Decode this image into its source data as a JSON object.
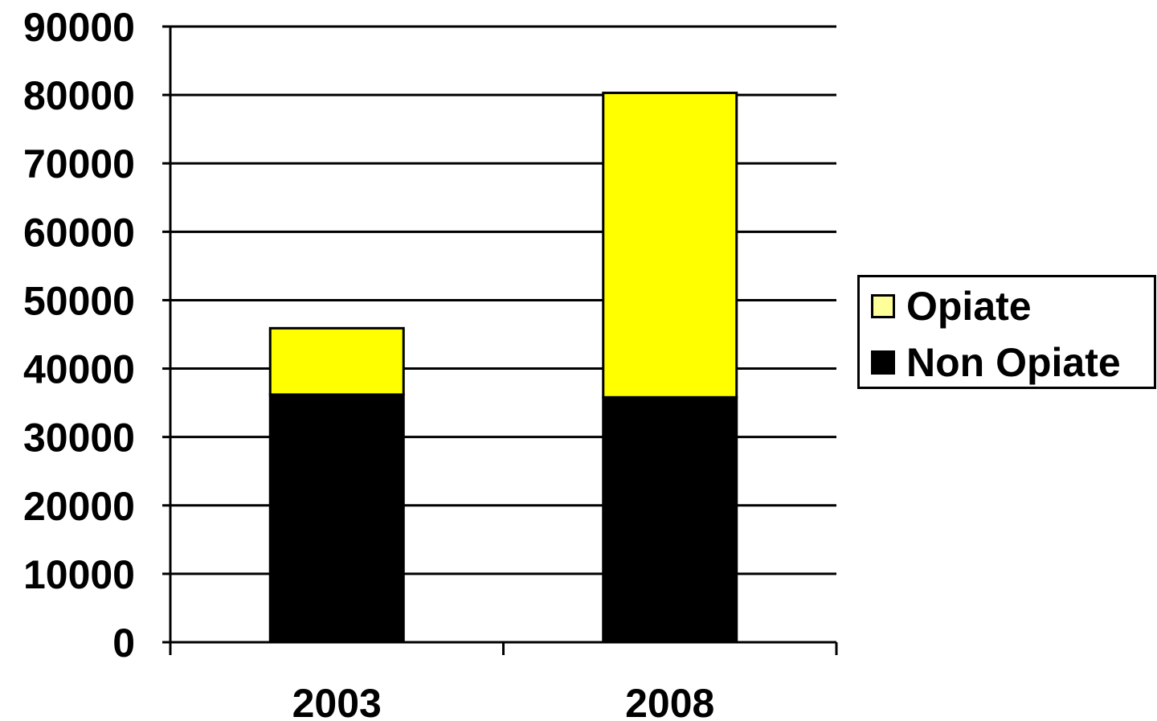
{
  "chart_data": {
    "type": "bar",
    "stacked": true,
    "categories": [
      "2003",
      "2008"
    ],
    "series": [
      {
        "name": "Non Opiate",
        "values": [
          36200,
          35800
        ],
        "color": "#000000"
      },
      {
        "name": "Opiate",
        "values": [
          9700,
          44500
        ],
        "color": "#FFFF00"
      }
    ],
    "title": "",
    "xlabel": "",
    "ylabel": "",
    "ylim": [
      0,
      90000
    ],
    "yticks": [
      "0",
      "10000",
      "20000",
      "30000",
      "40000",
      "50000",
      "60000",
      "70000",
      "80000",
      "90000"
    ],
    "grid": true,
    "legend_position": "right"
  },
  "legend": {
    "items": [
      {
        "label": "Opiate",
        "color": "#FFFF99"
      },
      {
        "label": "Non Opiate",
        "color": "#000000"
      }
    ]
  }
}
